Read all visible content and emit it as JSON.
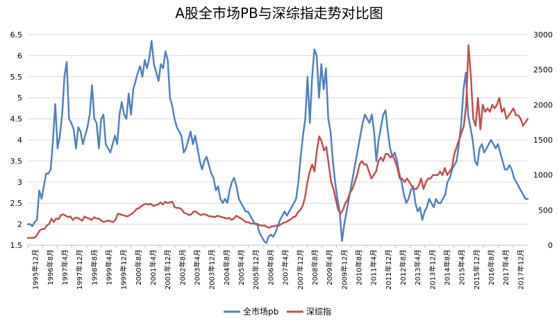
{
  "chart_data": {
    "type": "line",
    "title": "A股全市场PB与深综指走势对比图",
    "x_labels": [
      "1995年12月",
      "1996年8月",
      "1997年4月",
      "1997年12月",
      "1998年8月",
      "1999年4月",
      "1999年12月",
      "2000年8月",
      "2001年4月",
      "2001年12月",
      "2002年8月",
      "2003年4月",
      "2003年12月",
      "2004年8月",
      "2005年4月",
      "2005年12月",
      "2006年8月",
      "2007年4月",
      "2007年12月",
      "2008年8月",
      "2009年4月",
      "2009年12月",
      "2010年8月",
      "2011年4月",
      "2011年12月",
      "2012年8月",
      "2013年4月",
      "2013年12月",
      "2014年8月",
      "2015年4月",
      "2015年12月",
      "2016年8月",
      "2017年4月",
      "2017年12月"
    ],
    "y_left": {
      "range": [
        1.5,
        6.5
      ],
      "ticks": [
        "1.5",
        "2",
        "2.5",
        "3",
        "3.5",
        "4",
        "4.5",
        "5",
        "5.5",
        "6",
        "6.5"
      ]
    },
    "y_right": {
      "range": [
        0,
        3000
      ],
      "ticks": [
        "0",
        "500",
        "1000",
        "1500",
        "2000",
        "2500",
        "3000"
      ]
    },
    "legend_position": "bottom",
    "series": [
      {
        "name": "全市场pb",
        "axis": "left",
        "color": "#4F81BD",
        "values": [
          2.0,
          2.0,
          1.95,
          2.05,
          2.1,
          2.8,
          2.6,
          2.9,
          3.2,
          3.2,
          3.3,
          4.0,
          4.85,
          3.8,
          4.1,
          4.6,
          5.5,
          5.85,
          4.5,
          4.4,
          4.25,
          3.8,
          4.3,
          4.2,
          3.9,
          4.1,
          4.3,
          4.6,
          5.3,
          4.5,
          4.4,
          3.8,
          4.5,
          4.6,
          3.9,
          3.8,
          3.7,
          3.9,
          4.1,
          3.9,
          4.6,
          4.9,
          4.6,
          4.5,
          5.1,
          4.6,
          5.2,
          5.4,
          5.6,
          5.75,
          5.5,
          5.9,
          5.7,
          5.95,
          6.35,
          5.8,
          5.6,
          5.4,
          5.8,
          5.7,
          6.1,
          5.9,
          5.0,
          4.8,
          4.5,
          4.3,
          4.2,
          4.1,
          3.7,
          3.8,
          4.0,
          4.2,
          3.9,
          4.1,
          3.8,
          3.5,
          3.3,
          3.5,
          3.6,
          3.4,
          3.2,
          3.1,
          2.8,
          2.9,
          2.6,
          2.5,
          2.6,
          2.5,
          2.8,
          3.0,
          3.1,
          2.9,
          2.6,
          2.5,
          2.4,
          2.3,
          2.3,
          2.2,
          2.1,
          2.0,
          2.0,
          1.8,
          1.7,
          1.6,
          1.55,
          1.7,
          1.75,
          1.7,
          1.8,
          1.95,
          2.1,
          2.2,
          2.3,
          2.2,
          2.3,
          2.4,
          2.5,
          2.6,
          3.0,
          3.6,
          4.1,
          4.5,
          5.5,
          4.4,
          5.5,
          6.15,
          6.0,
          5.0,
          5.8,
          5.2,
          5.7,
          4.5,
          4.2,
          3.5,
          3.0,
          2.6,
          2.3,
          1.6,
          2.0,
          2.3,
          2.6,
          2.9,
          3.2,
          3.5,
          3.8,
          4.1,
          4.4,
          4.6,
          4.5,
          4.4,
          4.6,
          4.2,
          3.5,
          4.0,
          4.3,
          4.6,
          4.7,
          4.2,
          3.8,
          3.6,
          3.7,
          3.5,
          3.2,
          3.0,
          2.7,
          2.5,
          2.6,
          2.8,
          2.9,
          2.5,
          2.3,
          2.4,
          2.1,
          2.3,
          2.4,
          2.6,
          2.5,
          2.4,
          2.6,
          2.5,
          2.5,
          2.6,
          2.7,
          3.0,
          3.1,
          3.3,
          3.4,
          3.5,
          3.9,
          4.4,
          5.2,
          5.6,
          4.6,
          4.3,
          4.0,
          3.5,
          3.4,
          3.8,
          3.9,
          3.7,
          3.8,
          3.9,
          4.0,
          3.9,
          3.8,
          3.9,
          3.7,
          3.5,
          3.3,
          3.3,
          3.4,
          3.3,
          3.1,
          3.0,
          2.9,
          2.8,
          2.7,
          2.6,
          2.6
        ]
      },
      {
        "name": "深综指",
        "axis": "right",
        "color": "#C0504D",
        "values": [
          105,
          105,
          105,
          110,
          150,
          210,
          230,
          230,
          280,
          300,
          380,
          330,
          380,
          370,
          430,
          440,
          420,
          400,
          410,
          360,
          390,
          390,
          370,
          350,
          410,
          390,
          380,
          360,
          400,
          380,
          380,
          350,
          330,
          340,
          350,
          340,
          330,
          360,
          450,
          440,
          430,
          420,
          410,
          430,
          450,
          480,
          520,
          530,
          560,
          580,
          590,
          580,
          590,
          560,
          570,
          580,
          610,
          580,
          620,
          600,
          610,
          620,
          540,
          530,
          530,
          510,
          460,
          450,
          430,
          440,
          480,
          480,
          450,
          430,
          440,
          440,
          420,
          410,
          410,
          400,
          420,
          410,
          400,
          390,
          380,
          390,
          360,
          380,
          420,
          400,
          380,
          360,
          330,
          330,
          310,
          310,
          310,
          300,
          280,
          280,
          280,
          260,
          250,
          270,
          270,
          280,
          280,
          300,
          320,
          330,
          350,
          370,
          400,
          410,
          470,
          500,
          560,
          680,
          900,
          1050,
          1150,
          1050,
          1350,
          1550,
          1480,
          1350,
          1400,
          1150,
          900,
          800,
          650,
          500,
          450,
          500,
          600,
          650,
          750,
          800,
          900,
          1000,
          1150,
          1200,
          1150,
          1150,
          1050,
          950,
          1000,
          1050,
          1200,
          1250,
          1200,
          1300,
          1300,
          1250,
          1280,
          1200,
          1100,
          950,
          950,
          900,
          950,
          900,
          850,
          800,
          800,
          850,
          950,
          800,
          900,
          950,
          950,
          1000,
          1000,
          1000,
          1050,
          1000,
          1100,
          1000,
          1050,
          1100,
          1300,
          1400,
          1500,
          1600,
          1700,
          2000,
          2850,
          2400,
          1800,
          1700,
          2100,
          1650,
          2000,
          1900,
          1950,
          1900,
          2000,
          1950,
          2000,
          2100,
          1900,
          1950,
          1800,
          1850,
          1900,
          1950,
          1850,
          1850,
          1800,
          1700,
          1750,
          1800
        ]
      }
    ]
  }
}
